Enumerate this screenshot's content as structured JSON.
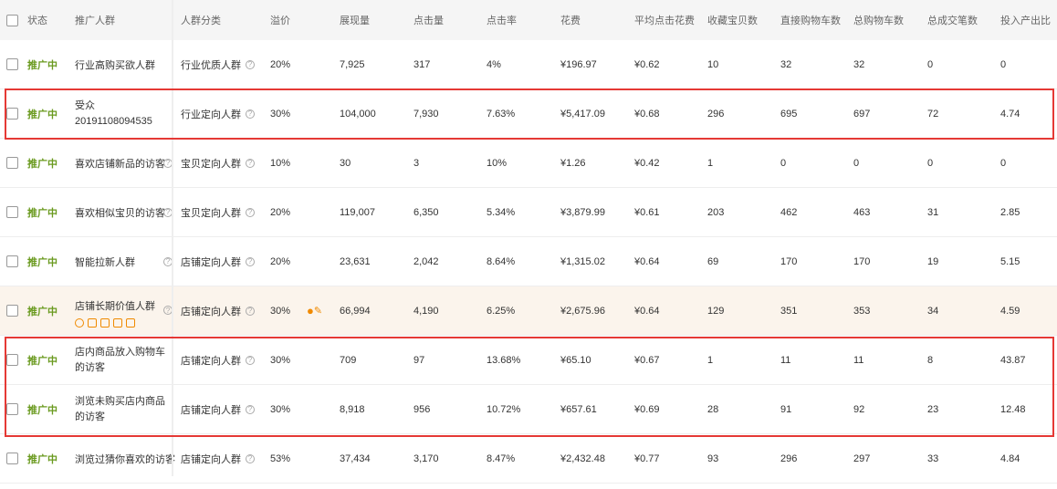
{
  "columns": [
    "状态",
    "推广人群",
    "人群分类",
    "溢价",
    "展现量",
    "点击量",
    "点击率",
    "花费",
    "平均点击花费",
    "收藏宝贝数",
    "直接购物车数",
    "总购物车数",
    "总成交笔数",
    "投入产出比"
  ],
  "rows": [
    {
      "status": "推广中",
      "name": "行业高购买欲人群",
      "category": "行业优质人群",
      "premium": "20%",
      "impressions": "7,925",
      "clicks": "317",
      "ctr": "4%",
      "cost": "¥196.97",
      "avg_cpc": "¥0.62",
      "favorites": "10",
      "direct_cart": "32",
      "total_cart": "32",
      "deals": "0",
      "roi": "0",
      "name_help": false,
      "highlighted": false
    },
    {
      "status": "推广中",
      "name": "受众20191108094535",
      "category": "行业定向人群",
      "premium": "30%",
      "impressions": "104,000",
      "clicks": "7,930",
      "ctr": "7.63%",
      "cost": "¥5,417.09",
      "avg_cpc": "¥0.68",
      "favorites": "296",
      "direct_cart": "695",
      "total_cart": "697",
      "deals": "72",
      "roi": "4.74",
      "name_help": false,
      "highlighted": false
    },
    {
      "status": "推广中",
      "name": "喜欢店铺新品的访客",
      "category": "宝贝定向人群",
      "premium": "10%",
      "impressions": "30",
      "clicks": "3",
      "ctr": "10%",
      "cost": "¥1.26",
      "avg_cpc": "¥0.42",
      "favorites": "1",
      "direct_cart": "0",
      "total_cart": "0",
      "deals": "0",
      "roi": "0",
      "name_help": true,
      "highlighted": false
    },
    {
      "status": "推广中",
      "name": "喜欢相似宝贝的访客",
      "category": "宝贝定向人群",
      "premium": "20%",
      "impressions": "119,007",
      "clicks": "6,350",
      "ctr": "5.34%",
      "cost": "¥3,879.99",
      "avg_cpc": "¥0.61",
      "favorites": "203",
      "direct_cart": "462",
      "total_cart": "463",
      "deals": "31",
      "roi": "2.85",
      "name_help": true,
      "highlighted": false
    },
    {
      "status": "推广中",
      "name": "智能拉新人群",
      "category": "店铺定向人群",
      "premium": "20%",
      "impressions": "23,631",
      "clicks": "2,042",
      "ctr": "8.64%",
      "cost": "¥1,315.02",
      "avg_cpc": "¥0.64",
      "favorites": "69",
      "direct_cart": "170",
      "total_cart": "170",
      "deals": "19",
      "roi": "5.15",
      "name_help": true,
      "highlighted": false
    },
    {
      "status": "推广中",
      "name": "店铺长期价值人群",
      "category": "店铺定向人群",
      "premium": "30%",
      "impressions": "66,994",
      "clicks": "4,190",
      "ctr": "6.25%",
      "cost": "¥2,675.96",
      "avg_cpc": "¥0.64",
      "favorites": "129",
      "direct_cart": "351",
      "total_cart": "353",
      "deals": "34",
      "roi": "4.59",
      "name_help": true,
      "highlighted": true
    },
    {
      "status": "推广中",
      "name": "店内商品放入购物车的访客",
      "category": "店铺定向人群",
      "premium": "30%",
      "impressions": "709",
      "clicks": "97",
      "ctr": "13.68%",
      "cost": "¥65.10",
      "avg_cpc": "¥0.67",
      "favorites": "1",
      "direct_cart": "11",
      "total_cart": "11",
      "deals": "8",
      "roi": "43.87",
      "name_help": false,
      "highlighted": false
    },
    {
      "status": "推广中",
      "name": "浏览未购买店内商品的访客",
      "category": "店铺定向人群",
      "premium": "30%",
      "impressions": "8,918",
      "clicks": "956",
      "ctr": "10.72%",
      "cost": "¥657.61",
      "avg_cpc": "¥0.69",
      "favorites": "28",
      "direct_cart": "91",
      "total_cart": "92",
      "deals": "23",
      "roi": "12.48",
      "name_help": false,
      "highlighted": false
    },
    {
      "status": "推广中",
      "name": "浏览过猜你喜欢的访客",
      "category": "店铺定向人群",
      "premium": "53%",
      "impressions": "37,434",
      "clicks": "3,170",
      "ctr": "8.47%",
      "cost": "¥2,432.48",
      "avg_cpc": "¥0.77",
      "favorites": "93",
      "direct_cart": "296",
      "total_cart": "297",
      "deals": "33",
      "roi": "4.84",
      "name_help": false,
      "highlighted": false
    }
  ],
  "help_glyph": "?",
  "colors": {
    "status": "#6a9a1f",
    "highlight_row": "#fbf4ec",
    "annotation_box": "#e53935",
    "action_icons": "#f08a00"
  }
}
